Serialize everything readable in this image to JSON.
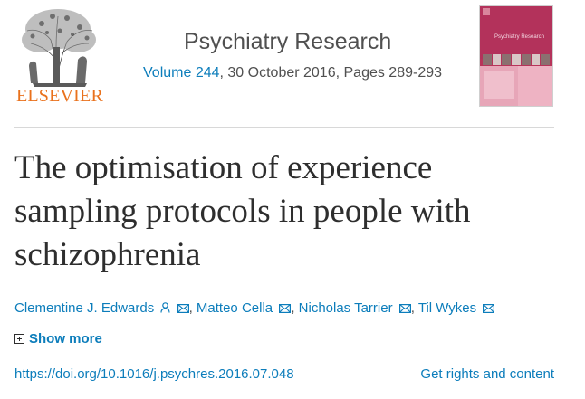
{
  "publisher": {
    "logo_word": "ELSEVIER"
  },
  "journal": {
    "name": "Psychiatry Research",
    "volume_link": "Volume 244",
    "issue_rest": ", 30 October 2016, Pages 289-293",
    "cover_title": "Psychiatry Research"
  },
  "article": {
    "title": "The optimisation of experience sampling protocols in people with schizophrenia"
  },
  "authors": [
    {
      "name": "Clementine J. Edwards",
      "icons": [
        "person-icon",
        "envelope-icon"
      ]
    },
    {
      "name": "Matteo Cella",
      "icons": [
        "envelope-icon"
      ]
    },
    {
      "name": "Nicholas Tarrier",
      "icons": [
        "envelope-icon"
      ]
    },
    {
      "name": "Til Wykes",
      "icons": [
        "envelope-icon"
      ]
    }
  ],
  "links": {
    "show_more": "Show more",
    "doi": "https://doi.org/10.1016/j.psychres.2016.07.048",
    "rights": "Get rights and content"
  },
  "colors": {
    "link": "#0c7dbb",
    "brand": "#e9711c",
    "text": "#2e2e2e",
    "cover": "#b3325b"
  }
}
